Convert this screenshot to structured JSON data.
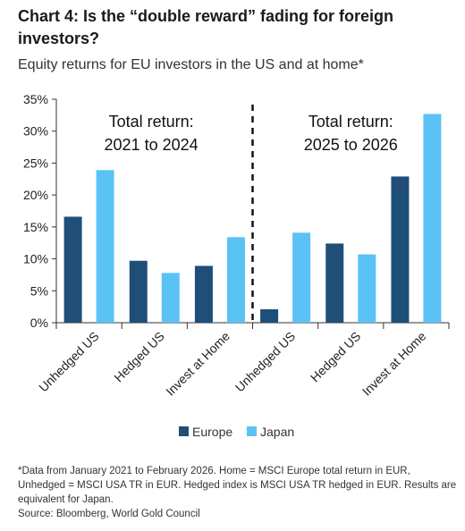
{
  "header": {
    "title": "Chart 4: Is the “double reward” fading for foreign investors?",
    "subtitle": "Equity returns for EU investors in the US and at home*"
  },
  "footer": {
    "note": "*Data from January 2021 to February 2026. Home = MSCI Europe total return in EUR, Unhedged = MSCI USA TR in EUR. Hedged index is MSCI USA TR hedged in EUR. Results are equivalent for Japan.",
    "source": "Source: Bloomberg, World Gold Council"
  },
  "chart_data": {
    "type": "bar",
    "title": "Chart 4: Is the “double reward” fading for foreign investors?",
    "subtitle": "Equity returns for EU investors in the US and at home*",
    "categories": [
      "Unhedged US",
      "Hedged US",
      "Invest at Home",
      "Unhedged US",
      "Hedged US",
      "Invest at Home"
    ],
    "series": [
      {
        "name": "Europe",
        "color": "#1f4e79",
        "values": [
          16.6,
          9.7,
          8.9,
          2.1,
          12.4,
          22.9
        ]
      },
      {
        "name": "Japan",
        "color": "#5bc2f5",
        "values": [
          23.9,
          7.8,
          13.4,
          14.1,
          10.7,
          32.7
        ]
      }
    ],
    "panels": [
      {
        "label_line1": "Total return:",
        "label_line2": "2021 to 2024"
      },
      {
        "label_line1": "Total return:",
        "label_line2": "2025 to 2026"
      }
    ],
    "y_ticks": [
      "0%",
      "5%",
      "10%",
      "15%",
      "20%",
      "25%",
      "30%",
      "35%"
    ],
    "ylim": [
      0,
      35
    ],
    "ylabel": "",
    "xlabel": "",
    "grid": false,
    "legend_position": "bottom"
  }
}
